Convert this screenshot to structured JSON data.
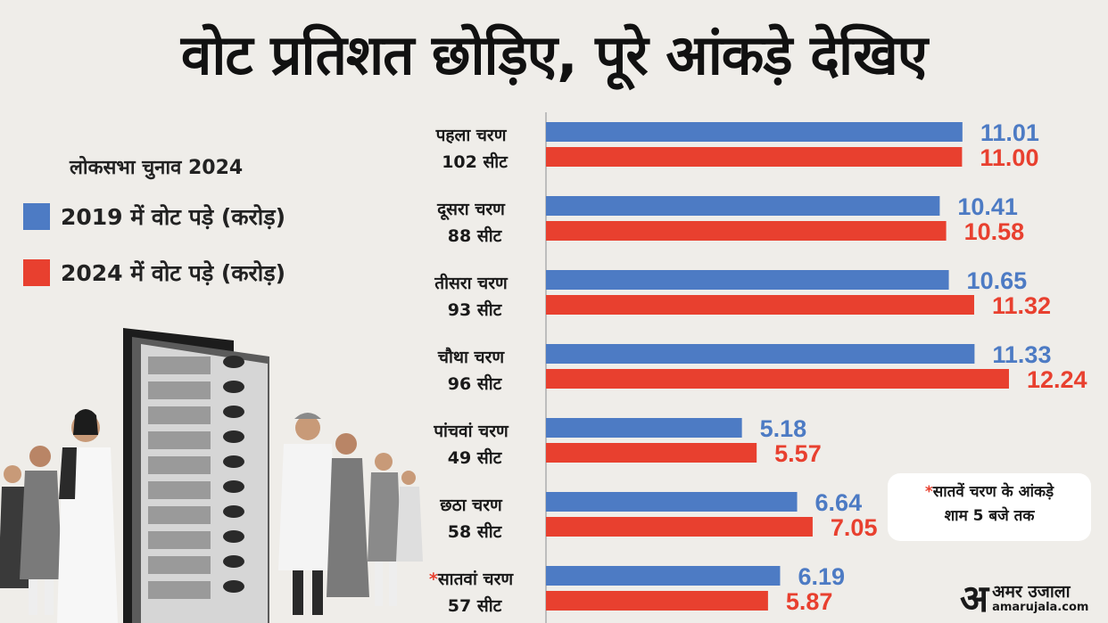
{
  "title": "वोट प्रतिशत छोड़िए, पूरे आंकड़े देखिए",
  "subtitle": "लोकसभा चुनाव 2024",
  "colors": {
    "series_2019": "#4d7bc4",
    "series_2024": "#e8402f",
    "background": "#efede9"
  },
  "note": {
    "star": "*",
    "line1": "सातवें चरण के आंकड़े",
    "line2": "शाम 5 बजे तक"
  },
  "brand": {
    "mark": "अ",
    "name": "अमर उजाला",
    "url": "amarujala.com"
  },
  "illustration": {
    "name": "evm-voters-illustration"
  },
  "chart_data": {
    "type": "bar",
    "orientation": "horizontal",
    "categories": [
      {
        "phase": "पहला चरण",
        "seats": "102 सीट",
        "marker": ""
      },
      {
        "phase": "दूसरा चरण",
        "seats": "88 सीट",
        "marker": ""
      },
      {
        "phase": "तीसरा चरण",
        "seats": "93 सीट",
        "marker": ""
      },
      {
        "phase": "चौथा चरण",
        "seats": "96 सीट",
        "marker": ""
      },
      {
        "phase": "पांचवां चरण",
        "seats": "49 सीट",
        "marker": ""
      },
      {
        "phase": "छठा चरण",
        "seats": "58 सीट",
        "marker": ""
      },
      {
        "phase": "सातवां चरण",
        "seats": "57 सीट",
        "marker": "*"
      }
    ],
    "series": [
      {
        "name": "2019 में वोट पड़े (करोड़)",
        "values": [
          11.01,
          10.41,
          10.65,
          11.33,
          5.18,
          6.64,
          6.19
        ],
        "labels": [
          "11.01",
          "10.41",
          "10.65",
          "11.33",
          "5.18",
          "6.64",
          "6.19"
        ]
      },
      {
        "name": "2024 में वोट पड़े (करोड़)",
        "values": [
          11.0,
          10.58,
          11.32,
          12.24,
          5.57,
          7.05,
          5.87
        ],
        "labels": [
          "11.00",
          "10.58",
          "11.32",
          "12.24",
          "5.57",
          "7.05",
          "5.87"
        ]
      }
    ],
    "xlim": [
      0,
      12.24
    ],
    "grid": false,
    "legend_position": "left"
  }
}
